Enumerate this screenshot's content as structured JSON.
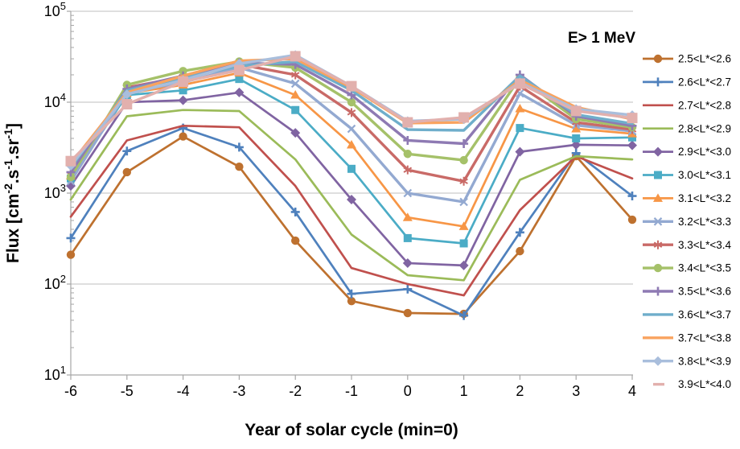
{
  "chart_data": {
    "type": "line",
    "y_scale": "log10",
    "annotation": "E> 1 MeV",
    "xlabel": "Year of solar cycle (min=0)",
    "ylabel": "Flux [cm-2.s-1.sr-1]",
    "ylabel_parts": [
      {
        "t": "Flux [cm"
      },
      {
        "sup": "-2"
      },
      {
        "t": ".s"
      },
      {
        "sup": "-1"
      },
      {
        "t": ".sr"
      },
      {
        "sup": "-1"
      },
      {
        "t": "]"
      }
    ],
    "x": [
      -6,
      -5,
      -4,
      -3,
      -2,
      -1,
      0,
      1,
      2,
      3,
      4
    ],
    "x_ticks": [
      "-6",
      "-5",
      "-4",
      "-3",
      "-2",
      "-1",
      "0",
      "1",
      "2",
      "3",
      "4"
    ],
    "y_ticks": [
      {
        "base": "10",
        "exp": "1"
      },
      {
        "base": "10",
        "exp": "2"
      },
      {
        "base": "10",
        "exp": "3"
      },
      {
        "base": "10",
        "exp": "4"
      },
      {
        "base": "10",
        "exp": "5"
      }
    ],
    "xlim": [
      -6,
      4
    ],
    "ylim_log": [
      1,
      5
    ],
    "grid": "horizontal-major",
    "legend_position": "right",
    "series": [
      {
        "name": "2.5<L*<2.6",
        "color": "#BE712F",
        "marker": "circle",
        "values": [
          210,
          1700,
          4200,
          1950,
          300,
          65,
          48,
          47,
          230,
          2550,
          510
        ]
      },
      {
        "name": "2.6<L*<2.7",
        "color": "#4F81BD",
        "marker": "plus",
        "values": [
          320,
          2900,
          5200,
          3200,
          620,
          78,
          88,
          45,
          370,
          2750,
          930
        ]
      },
      {
        "name": "2.7<L*<2.8",
        "color": "#C0504D",
        "marker": "none",
        "values": [
          550,
          3800,
          5500,
          5300,
          1200,
          150,
          100,
          75,
          650,
          2550,
          1450
        ]
      },
      {
        "name": "2.8<L*<2.9",
        "color": "#9BBB59",
        "marker": "none",
        "values": [
          850,
          7000,
          8200,
          8000,
          2350,
          350,
          125,
          110,
          1400,
          2550,
          2350
        ]
      },
      {
        "name": "2.9<L*<3.0",
        "color": "#8064A2",
        "marker": "diamond",
        "values": [
          1200,
          10000,
          10500,
          12800,
          4600,
          850,
          170,
          160,
          2850,
          3400,
          3350
        ]
      },
      {
        "name": "3.0<L*<3.1",
        "color": "#4BACC6",
        "marker": "square",
        "values": [
          1450,
          12000,
          13500,
          18000,
          8200,
          1850,
          320,
          280,
          5200,
          4000,
          4100
        ]
      },
      {
        "name": "3.1<L*<3.2",
        "color": "#F79646",
        "marker": "triangle",
        "values": [
          1550,
          12500,
          15500,
          21000,
          12000,
          3400,
          540,
          430,
          8500,
          5100,
          4500
        ]
      },
      {
        "name": "3.2<L*<3.3",
        "color": "#93A9D1",
        "marker": "x",
        "values": [
          1350,
          13000,
          16500,
          24000,
          16000,
          5100,
          1000,
          800,
          12500,
          5600,
          4800
        ]
      },
      {
        "name": "3.3<L*<3.4",
        "color": "#C96A67",
        "marker": "asterisk",
        "values": [
          1600,
          14500,
          19000,
          26000,
          20000,
          7700,
          1800,
          1350,
          15000,
          6000,
          5000
        ]
      },
      {
        "name": "3.4<L*<3.5",
        "color": "#A5C169",
        "marker": "circle",
        "values": [
          1500,
          15500,
          22000,
          28000,
          24000,
          10000,
          2700,
          2300,
          18500,
          6500,
          5300
        ]
      },
      {
        "name": "3.5<L*<3.6",
        "color": "#8E7AB3",
        "marker": "plus",
        "values": [
          1700,
          14000,
          19500,
          27000,
          26000,
          12000,
          3800,
          3500,
          20000,
          7000,
          5500
        ]
      },
      {
        "name": "3.6<L*<3.7",
        "color": "#6FAECB",
        "marker": "none",
        "values": [
          1900,
          13500,
          18500,
          25000,
          28000,
          13500,
          5000,
          4900,
          19500,
          7300,
          5800
        ]
      },
      {
        "name": "3.7<L*<3.8",
        "color": "#F9A35F",
        "marker": "none",
        "values": [
          2100,
          12800,
          19500,
          28500,
          30000,
          14500,
          5900,
          6000,
          17500,
          8800,
          6500
        ]
      },
      {
        "name": "3.8<L*<3.9",
        "color": "#A9BEDC",
        "marker": "diamond",
        "values": [
          2000,
          12200,
          17500,
          26500,
          33000,
          15000,
          6200,
          6500,
          16500,
          8400,
          7200
        ]
      },
      {
        "name": "3.9<L*<4.0",
        "color": "#E2B0AD",
        "marker": "square-large",
        "values": [
          2250,
          9500,
          16800,
          22500,
          32000,
          15000,
          6000,
          6800,
          16000,
          8000,
          6700
        ]
      }
    ]
  },
  "style_colors": {
    "gridline": "#BFBFBF",
    "axis": "#A6A6A6",
    "text": "#000000",
    "background": "#FFFFFF"
  }
}
